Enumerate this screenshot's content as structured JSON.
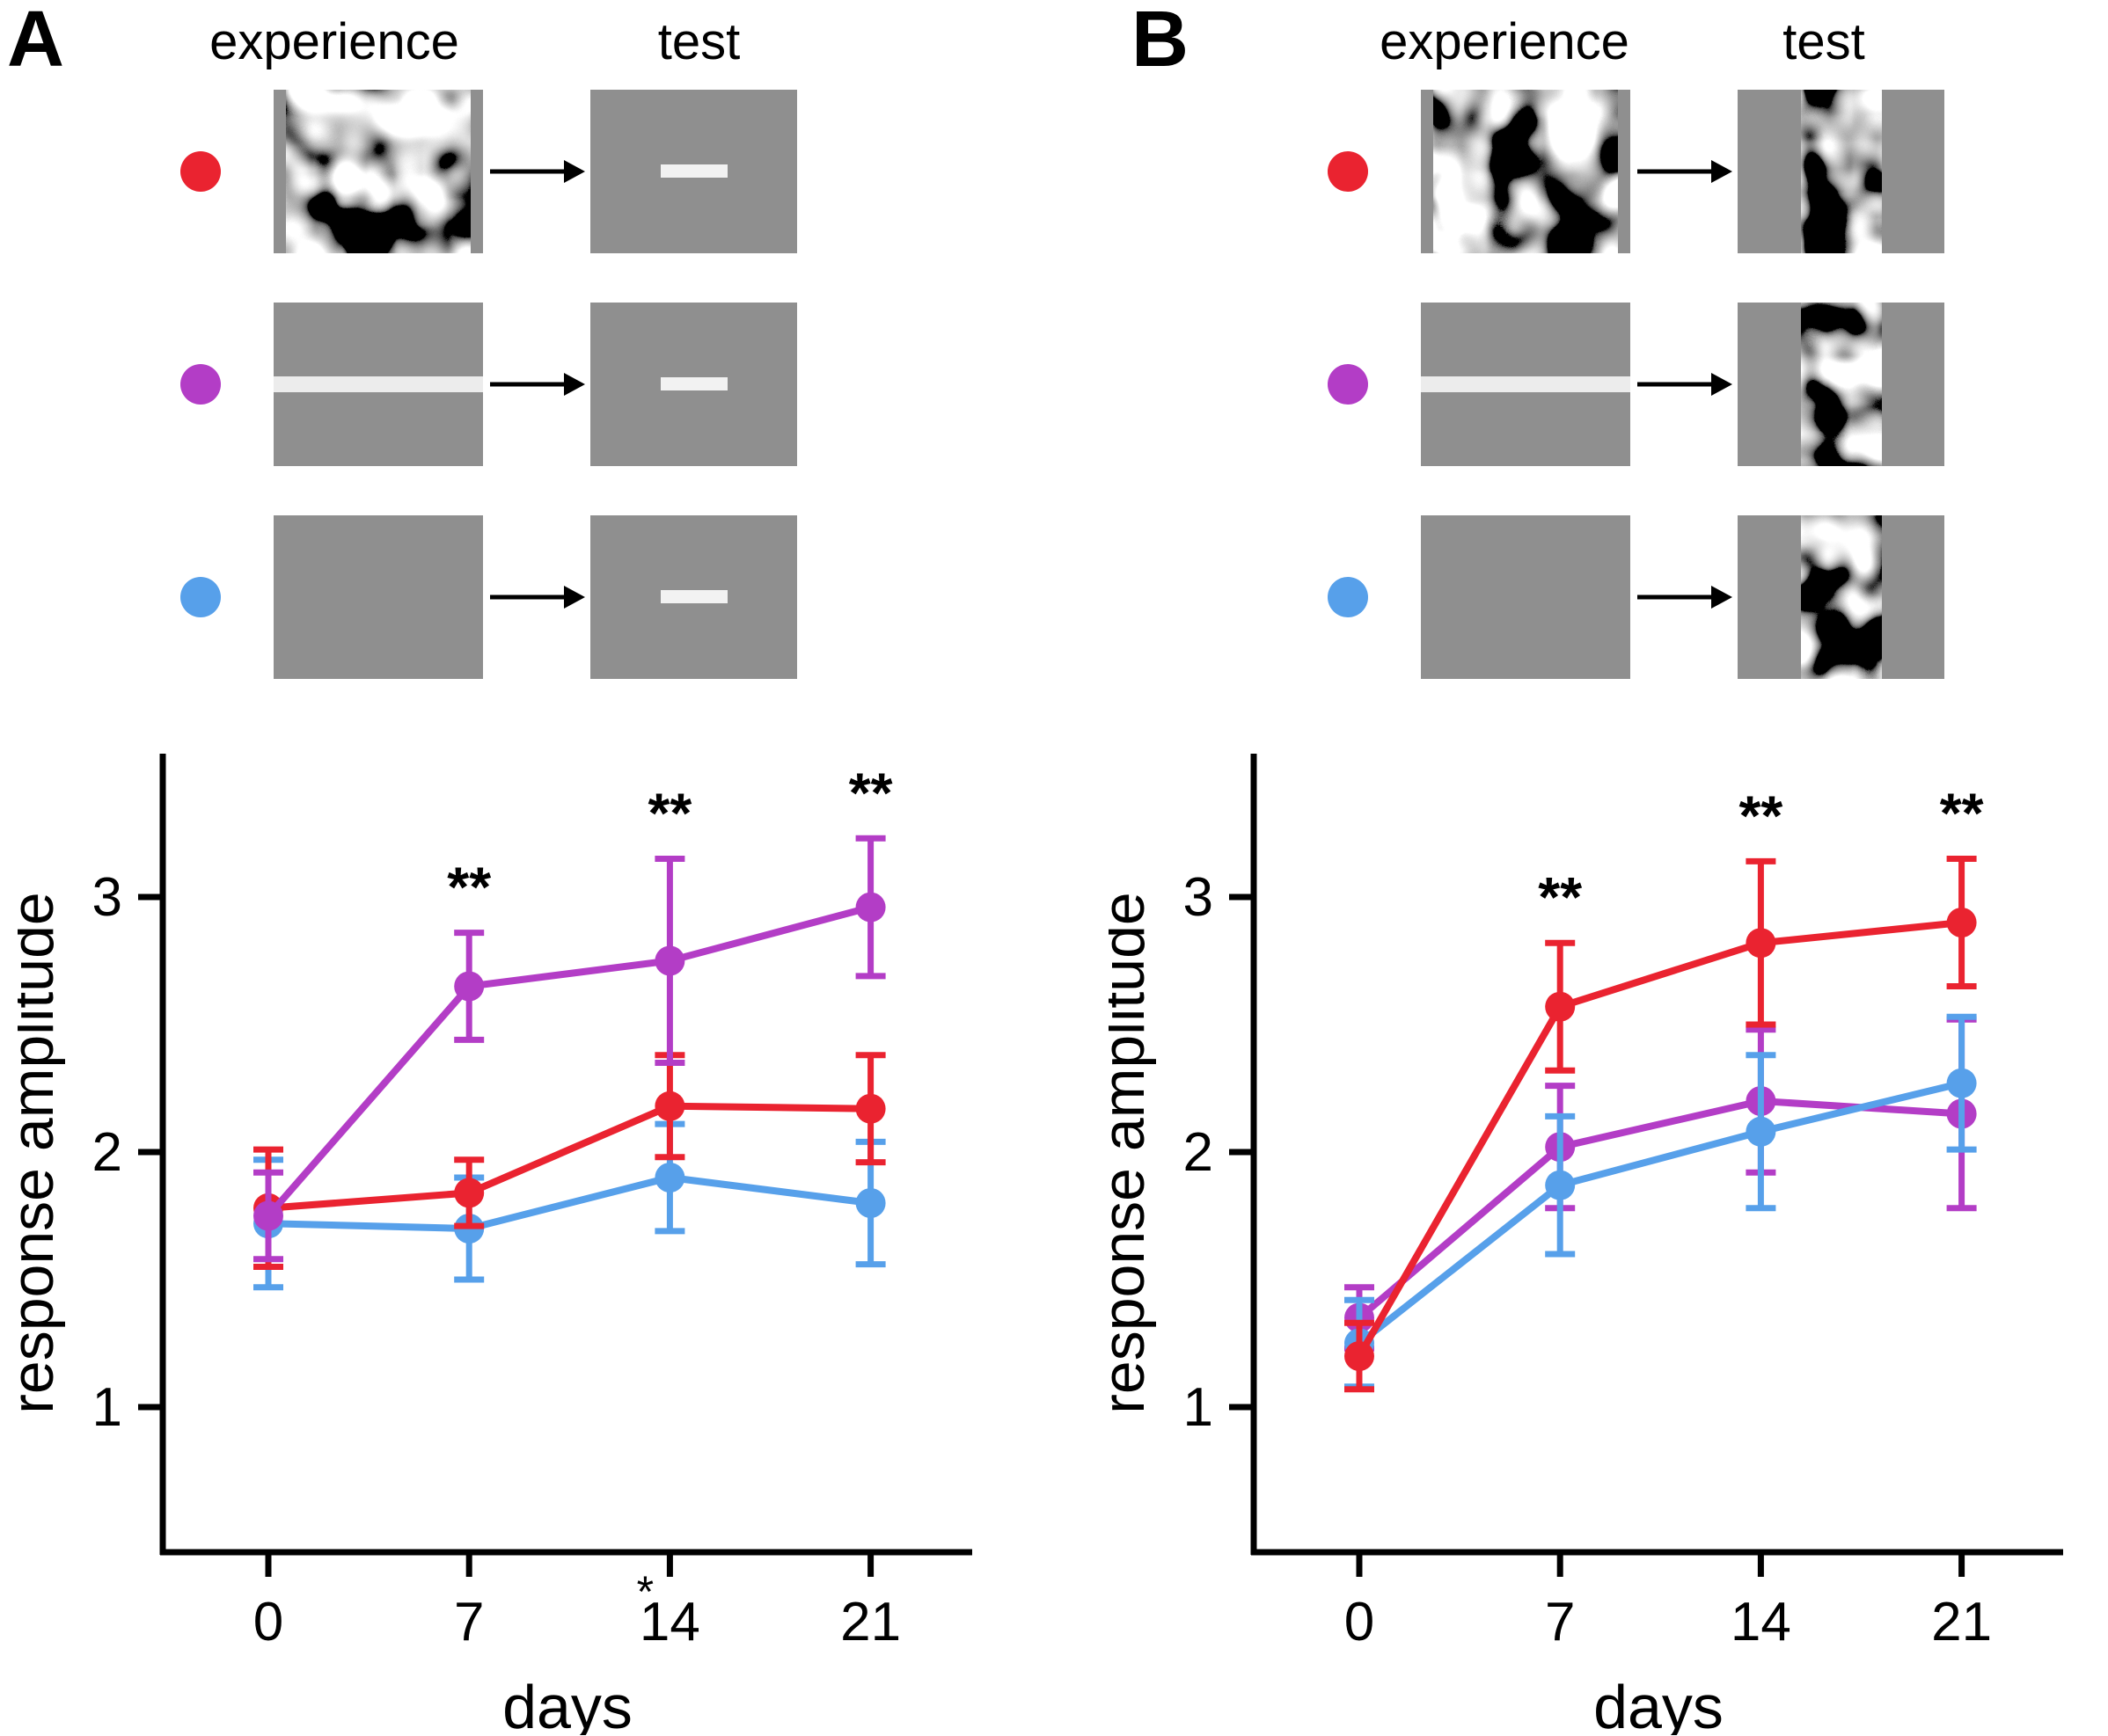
{
  "figure": {
    "panels": [
      {
        "label": "A",
        "experience_header": "experience",
        "test_header": "test",
        "rows": [
          {
            "condition": "natural-image-experience",
            "dot_color": "#ea2330",
            "experience_stim": "noise-image",
            "test_stim": "gray-small-bar"
          },
          {
            "condition": "light-bar-experience",
            "dot_color": "#b33dc6",
            "experience_stim": "gray-horizontal-light-bar",
            "test_stim": "gray-small-bar"
          },
          {
            "condition": "gray-screen-experience",
            "dot_color": "#57a0ea",
            "experience_stim": "gray-blank",
            "test_stim": "gray-small-bar"
          }
        ]
      },
      {
        "label": "B",
        "experience_header": "experience",
        "test_header": "test",
        "rows": [
          {
            "condition": "natural-image-experience",
            "dot_color": "#ea2330",
            "experience_stim": "noise-image",
            "test_stim": "gray-noise-strip"
          },
          {
            "condition": "light-bar-experience",
            "dot_color": "#b33dc6",
            "experience_stim": "gray-horizontal-light-bar",
            "test_stim": "gray-noise-strip"
          },
          {
            "condition": "gray-screen-experience",
            "dot_color": "#57a0ea",
            "experience_stim": "gray-blank",
            "test_stim": "gray-noise-strip"
          }
        ]
      }
    ]
  },
  "colors": {
    "red": "#ea2330",
    "purple": "#b33dc6",
    "blue": "#57a0ea",
    "stim_gray": "#8f8f8f",
    "stim_light_bar": "#ececec",
    "axis": "#000000"
  },
  "chart_data": [
    {
      "type": "line",
      "panel": "A",
      "title": "",
      "xlabel": "days",
      "ylabel": "response amplitude",
      "x": [
        0,
        7,
        14,
        21
      ],
      "yticks": [
        1,
        2,
        3
      ],
      "ylim": [
        0.43,
        3.56
      ],
      "grid": false,
      "series": [
        {
          "name": "gray screen experience",
          "color": "#57a0ea",
          "values": [
            1.72,
            1.7,
            1.9,
            1.8
          ],
          "err": [
            0.25,
            0.2,
            0.21,
            0.24
          ]
        },
        {
          "name": "natural image experience",
          "color": "#ea2330",
          "values": [
            1.78,
            1.84,
            2.18,
            2.17
          ],
          "err": [
            0.23,
            0.13,
            0.2,
            0.21
          ]
        },
        {
          "name": "light bar experience",
          "color": "#b33dc6",
          "values": [
            1.75,
            2.65,
            2.75,
            2.96
          ],
          "err": [
            0.17,
            0.21,
            0.4,
            0.27
          ]
        }
      ],
      "significance": [
        {
          "x": 7,
          "label": "**"
        },
        {
          "x": 14,
          "label": "**"
        },
        {
          "x": 21,
          "label": "**"
        }
      ],
      "axis_note": {
        "x": 14,
        "label": "*"
      }
    },
    {
      "type": "line",
      "panel": "B",
      "title": "",
      "xlabel": "days",
      "ylabel": "response amplitude",
      "x": [
        0,
        7,
        14,
        21
      ],
      "yticks": [
        1,
        2,
        3
      ],
      "ylim": [
        0.43,
        3.56
      ],
      "grid": false,
      "series": [
        {
          "name": "light bar experience",
          "color": "#b33dc6",
          "values": [
            1.35,
            2.02,
            2.2,
            2.15
          ],
          "err": [
            0.12,
            0.24,
            0.28,
            0.37
          ]
        },
        {
          "name": "gray screen experience",
          "color": "#57a0ea",
          "values": [
            1.25,
            1.87,
            2.08,
            2.27
          ],
          "err": [
            0.17,
            0.27,
            0.3,
            0.26
          ]
        },
        {
          "name": "natural image experience",
          "color": "#ea2330",
          "values": [
            1.2,
            2.57,
            2.82,
            2.9
          ],
          "err": [
            0.13,
            0.25,
            0.32,
            0.25
          ]
        }
      ],
      "significance": [
        {
          "x": 7,
          "label": "**"
        },
        {
          "x": 14,
          "label": "**"
        },
        {
          "x": 21,
          "label": "**"
        }
      ]
    }
  ]
}
